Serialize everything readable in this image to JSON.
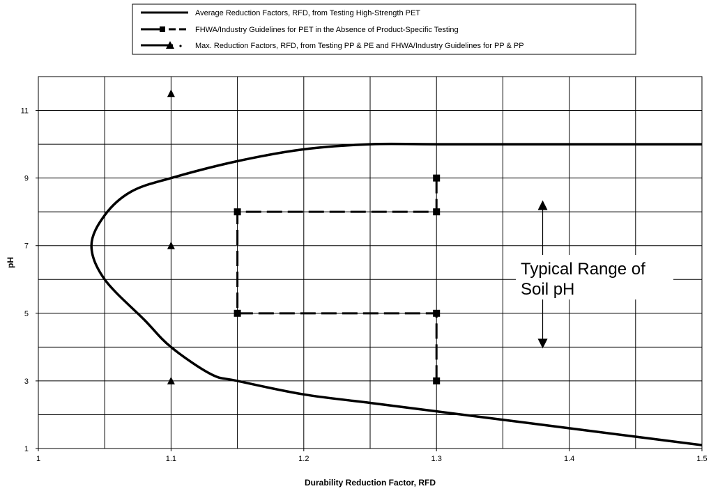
{
  "chart_data": {
    "type": "line",
    "xlabel": "Durability Reduction Factor, RFD",
    "ylabel": "pH",
    "xlim": [
      1,
      1.5
    ],
    "ylim": [
      1,
      12
    ],
    "x_ticks": [
      "1",
      "1.1",
      "1.2",
      "1.3",
      "1.4",
      "1.5"
    ],
    "y_ticks": [
      "1",
      "3",
      "5",
      "7",
      "9",
      "11"
    ],
    "grid": true,
    "legend_position": "top",
    "series": [
      {
        "name": "Average Reduction Factors, RFD, from Testing High-Strength PET",
        "style": "solid",
        "points": [
          [
            1.5,
            1.1
          ],
          [
            1.45,
            1.35
          ],
          [
            1.4,
            1.6
          ],
          [
            1.35,
            1.85
          ],
          [
            1.3,
            2.1
          ],
          [
            1.25,
            2.35
          ],
          [
            1.2,
            2.6
          ],
          [
            1.15,
            3.0
          ],
          [
            1.13,
            3.2
          ],
          [
            1.1,
            4.0
          ],
          [
            1.08,
            4.8
          ],
          [
            1.05,
            6.0
          ],
          [
            1.04,
            7.0
          ],
          [
            1.05,
            7.9
          ],
          [
            1.07,
            8.6
          ],
          [
            1.1,
            9.0
          ],
          [
            1.15,
            9.5
          ],
          [
            1.2,
            9.85
          ],
          [
            1.25,
            10.0
          ],
          [
            1.3,
            10.0
          ],
          [
            1.4,
            10.0
          ],
          [
            1.5,
            10.0
          ]
        ]
      },
      {
        "name": "FHWA/Industry Guidelines for PET in the Absence of Product-Specific Testing",
        "style": "dashed-square",
        "points": [
          [
            1.3,
            9
          ],
          [
            1.3,
            8
          ],
          [
            1.15,
            8
          ],
          [
            1.15,
            5
          ],
          [
            1.3,
            5
          ],
          [
            1.3,
            3
          ]
        ]
      },
      {
        "name": "Max. Reduction Factors, RFD, from Testing PP & PE and FHWA/Industry Guidelines for PP & PP",
        "style": "dotted-triangle",
        "points": [
          [
            1.1,
            3
          ],
          [
            1.1,
            7
          ],
          [
            1.1,
            11.5
          ]
        ]
      }
    ],
    "annotations": [
      {
        "text_lines": [
          "Typical Range of",
          "Soil pH"
        ],
        "arrow_x": 1.38,
        "arrow_y_range": [
          4,
          8.3
        ]
      }
    ]
  },
  "colors": {
    "line": "#000000",
    "grid": "#000000",
    "background": "#ffffff"
  }
}
